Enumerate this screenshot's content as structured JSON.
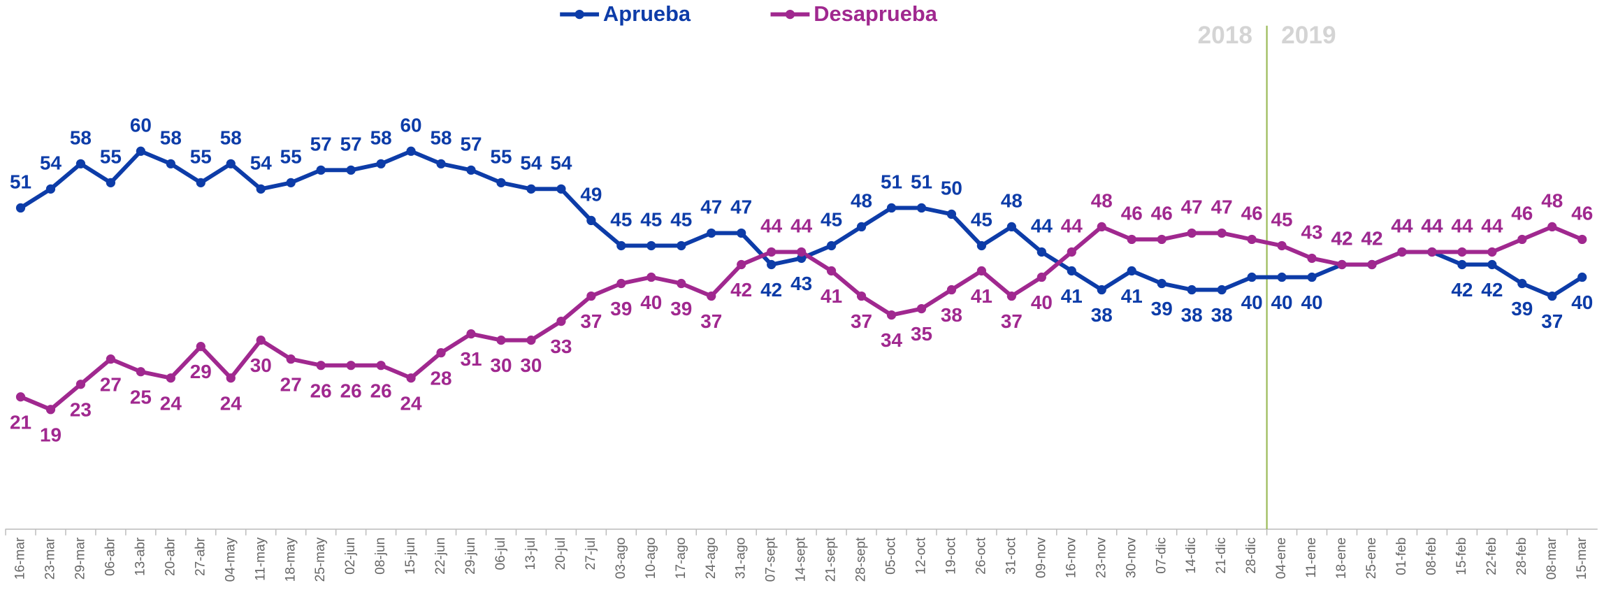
{
  "chart_data": {
    "type": "line",
    "categories": [
      "16-mar",
      "23-mar",
      "29-mar",
      "06-abr",
      "13-abr",
      "20-abr",
      "27-abr",
      "04-may",
      "11-may",
      "18-may",
      "25-may",
      "02-jun",
      "08-jun",
      "15-jun",
      "22-jun",
      "29-jun",
      "06-jul",
      "13-jul",
      "20-jul",
      "27-jul",
      "03-ago",
      "10-ago",
      "17-ago",
      "24-ago",
      "31-ago",
      "07-sept",
      "14-sept",
      "21-sept",
      "28-sept",
      "05-oct",
      "12-oct",
      "19-oct",
      "26-oct",
      "31-oct",
      "09-nov",
      "16-nov",
      "23-nov",
      "30-nov",
      "07-dic",
      "14-dic",
      "21-dic",
      "28-dic",
      "04-ene",
      "11-ene",
      "18-ene",
      "25-ene",
      "01-feb",
      "08-feb",
      "15-feb",
      "22-feb",
      "28-feb",
      "08-mar",
      "15-mar"
    ],
    "series": [
      {
        "name": "Aprueba",
        "color": "#0d3ca8",
        "values": [
          51,
          54,
          58,
          55,
          60,
          58,
          55,
          58,
          54,
          55,
          57,
          57,
          58,
          60,
          58,
          57,
          55,
          54,
          54,
          49,
          45,
          45,
          45,
          47,
          47,
          42,
          43,
          45,
          48,
          51,
          51,
          50,
          45,
          48,
          44,
          41,
          38,
          41,
          39,
          38,
          38,
          40,
          40,
          40,
          42,
          42,
          44,
          44,
          42,
          42,
          39,
          37,
          40
        ]
      },
      {
        "name": "Desaprueba",
        "color": "#a0288f",
        "values": [
          21,
          19,
          23,
          27,
          25,
          24,
          29,
          24,
          30,
          27,
          26,
          26,
          26,
          24,
          28,
          31,
          30,
          30,
          33,
          37,
          39,
          40,
          39,
          37,
          42,
          44,
          44,
          41,
          37,
          34,
          35,
          38,
          41,
          37,
          40,
          44,
          48,
          46,
          46,
          47,
          47,
          46,
          45,
          43,
          42,
          42,
          44,
          44,
          44,
          44,
          46,
          48,
          46
        ]
      }
    ],
    "ylim": [
      0,
      84
    ],
    "annotations": [
      "2018",
      "2019"
    ],
    "divider_color": "#9bbb59",
    "legend": "top"
  }
}
